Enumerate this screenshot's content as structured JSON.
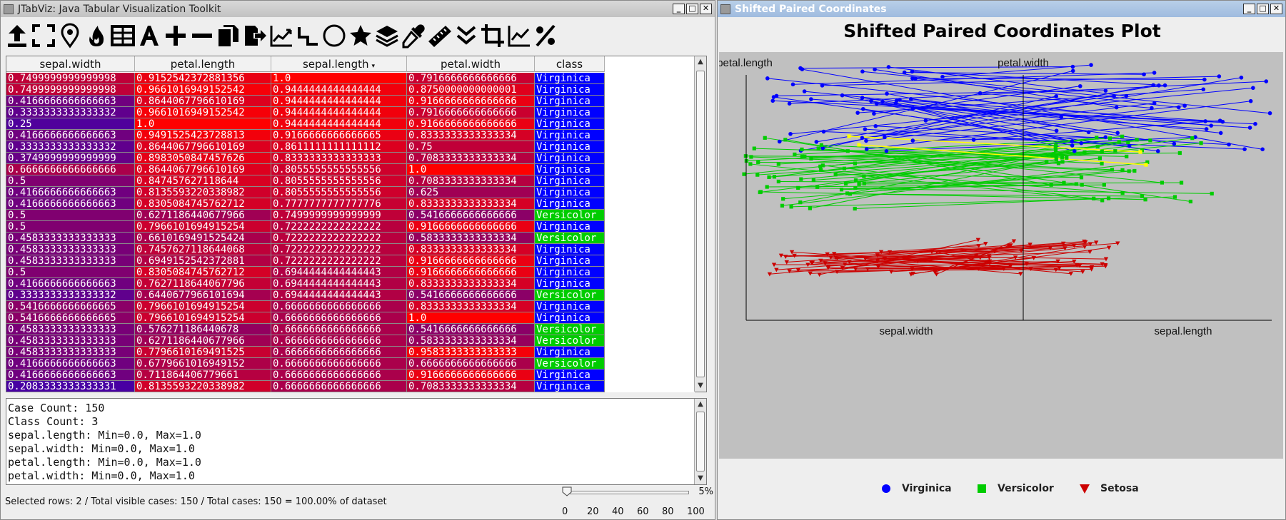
{
  "left_window": {
    "title": "JTabViz: Java Tabular Visualization Toolkit",
    "window_buttons": [
      "_",
      "□",
      "✕"
    ]
  },
  "toolbar": {
    "tools": [
      "import-icon",
      "fullscreen-icon",
      "pin-icon",
      "fire-icon",
      "table-icon",
      "font-icon",
      "plus-icon",
      "minus-icon",
      "copy-icon",
      "export-icon",
      "line-chart-icon",
      "steps-icon",
      "circle-icon",
      "star-icon",
      "layers-icon",
      "eyedropper-icon",
      "ruler-icon",
      "chevrons-down-icon",
      "crop-icon",
      "trend-icon",
      "percent-icon"
    ]
  },
  "table": {
    "columns": [
      "sepal.width",
      "petal.length",
      "sepal.length",
      "petal.width",
      "class"
    ],
    "sorted_column_marker": "▾",
    "rows": [
      [
        "0.7499999999999998",
        "0.9152542372881356",
        "1.0",
        "0.7916666666666666",
        "Virginica"
      ],
      [
        "0.7499999999999998",
        "0.9661016949152542",
        "0.9444444444444444",
        "0.8750000000000001",
        "Virginica"
      ],
      [
        "0.4166666666666663",
        "0.8644067796610169",
        "0.9444444444444444",
        "0.9166666666666666",
        "Virginica"
      ],
      [
        "0.3333333333333332",
        "0.9661016949152542",
        "0.9444444444444444",
        "0.7916666666666666",
        "Virginica"
      ],
      [
        "0.25",
        "1.0",
        "0.9444444444444444",
        "0.9166666666666666",
        "Virginica"
      ],
      [
        "0.4166666666666663",
        "0.9491525423728813",
        "0.9166666666666665",
        "0.8333333333333334",
        "Virginica"
      ],
      [
        "0.3333333333333332",
        "0.8644067796610169",
        "0.8611111111111112",
        "0.75",
        "Virginica"
      ],
      [
        "0.3749999999999999",
        "0.8983050847457626",
        "0.8333333333333333",
        "0.7083333333333334",
        "Virginica"
      ],
      [
        "0.6666666666666666",
        "0.8644067796610169",
        "0.8055555555555556",
        "1.0",
        "Virginica"
      ],
      [
        "0.5",
        "0.847457627118644",
        "0.8055555555555556",
        "0.7083333333333334",
        "Virginica"
      ],
      [
        "0.4166666666666663",
        "0.8135593220338982",
        "0.8055555555555556",
        "0.625",
        "Virginica"
      ],
      [
        "0.4166666666666663",
        "0.8305084745762712",
        "0.7777777777777776",
        "0.8333333333333334",
        "Virginica"
      ],
      [
        "0.5",
        "0.6271186440677966",
        "0.7499999999999999",
        "0.5416666666666666",
        "Versicolor"
      ],
      [
        "0.5",
        "0.7966101694915254",
        "0.7222222222222222",
        "0.9166666666666666",
        "Virginica"
      ],
      [
        "0.4583333333333333",
        "0.6610169491525424",
        "0.7222222222222222",
        "0.5833333333333334",
        "Versicolor"
      ],
      [
        "0.4583333333333333",
        "0.7457627118644068",
        "0.7222222222222222",
        "0.8333333333333334",
        "Virginica"
      ],
      [
        "0.4583333333333333",
        "0.6949152542372881",
        "0.7222222222222222",
        "0.9166666666666666",
        "Virginica"
      ],
      [
        "0.5",
        "0.8305084745762712",
        "0.6944444444444443",
        "0.9166666666666666",
        "Virginica"
      ],
      [
        "0.4166666666666663",
        "0.7627118644067796",
        "0.6944444444444443",
        "0.8333333333333334",
        "Virginica"
      ],
      [
        "0.3333333333333332",
        "0.6440677966101694",
        "0.6944444444444443",
        "0.5416666666666666",
        "Versicolor"
      ],
      [
        "0.5416666666666665",
        "0.7966101694915254",
        "0.6666666666666666",
        "0.8333333333333334",
        "Virginica"
      ],
      [
        "0.5416666666666665",
        "0.7966101694915254",
        "0.6666666666666666",
        "1.0",
        "Virginica"
      ],
      [
        "0.4583333333333333",
        "0.576271186440678",
        "0.6666666666666666",
        "0.5416666666666666",
        "Versicolor"
      ],
      [
        "0.4583333333333333",
        "0.6271186440677966",
        "0.6666666666666666",
        "0.5833333333333334",
        "Versicolor"
      ],
      [
        "0.4583333333333333",
        "0.7796610169491525",
        "0.6666666666666666",
        "0.9583333333333333",
        "Virginica"
      ],
      [
        "0.4166666666666663",
        "0.6779661016949152",
        "0.6666666666666666",
        "0.6666666666666666",
        "Versicolor"
      ],
      [
        "0.4166666666666663",
        "0.711864406779661",
        "0.6666666666666666",
        "0.9166666666666666",
        "Virginica"
      ],
      [
        "0.2083333333333331",
        "0.8135593220338982",
        "0.6666666666666666",
        "0.7083333333333334",
        "Virginica"
      ]
    ],
    "class_colors": {
      "Virginica": "#0000ff",
      "Versicolor": "#00cc00",
      "Setosa": "#cc0000"
    }
  },
  "stats": {
    "lines": [
      "Case Count: 150",
      "Class Count: 3",
      "sepal.length: Min=0.0, Max=1.0",
      "sepal.width: Min=0.0, Max=1.0",
      "petal.length: Min=0.0, Max=1.0",
      "petal.width: Min=0.0, Max=1.0"
    ]
  },
  "status": {
    "text": "Selected rows: 2 / Total visible cases: 150 / Total cases: 150 = 100.00% of dataset"
  },
  "slider": {
    "value": 0,
    "percent_label": "5%",
    "tick_labels": [
      "0",
      "20",
      "40",
      "60",
      "80",
      "100"
    ]
  },
  "right_window": {
    "title": "Shifted Paired Coordinates",
    "window_buttons": [
      "_",
      "□",
      "✕"
    ]
  },
  "chart_data": {
    "type": "scatter",
    "title": "Shifted Paired Coordinates Plot",
    "axis_labels": {
      "pair1_y": "petal.length",
      "pair2_y": "petal.width",
      "pair1_x": "sepal.width",
      "pair2_x": "sepal.length"
    },
    "legend": [
      {
        "name": "Virginica",
        "color": "#0000ff",
        "marker": "circle"
      },
      {
        "name": "Versicolor",
        "color": "#00cc00",
        "marker": "square"
      },
      {
        "name": "Setosa",
        "color": "#cc0000",
        "marker": "triangle-down"
      }
    ],
    "legend_position": "bottom",
    "highlight_color": "#ffff00",
    "background": "#c0c0c0"
  }
}
